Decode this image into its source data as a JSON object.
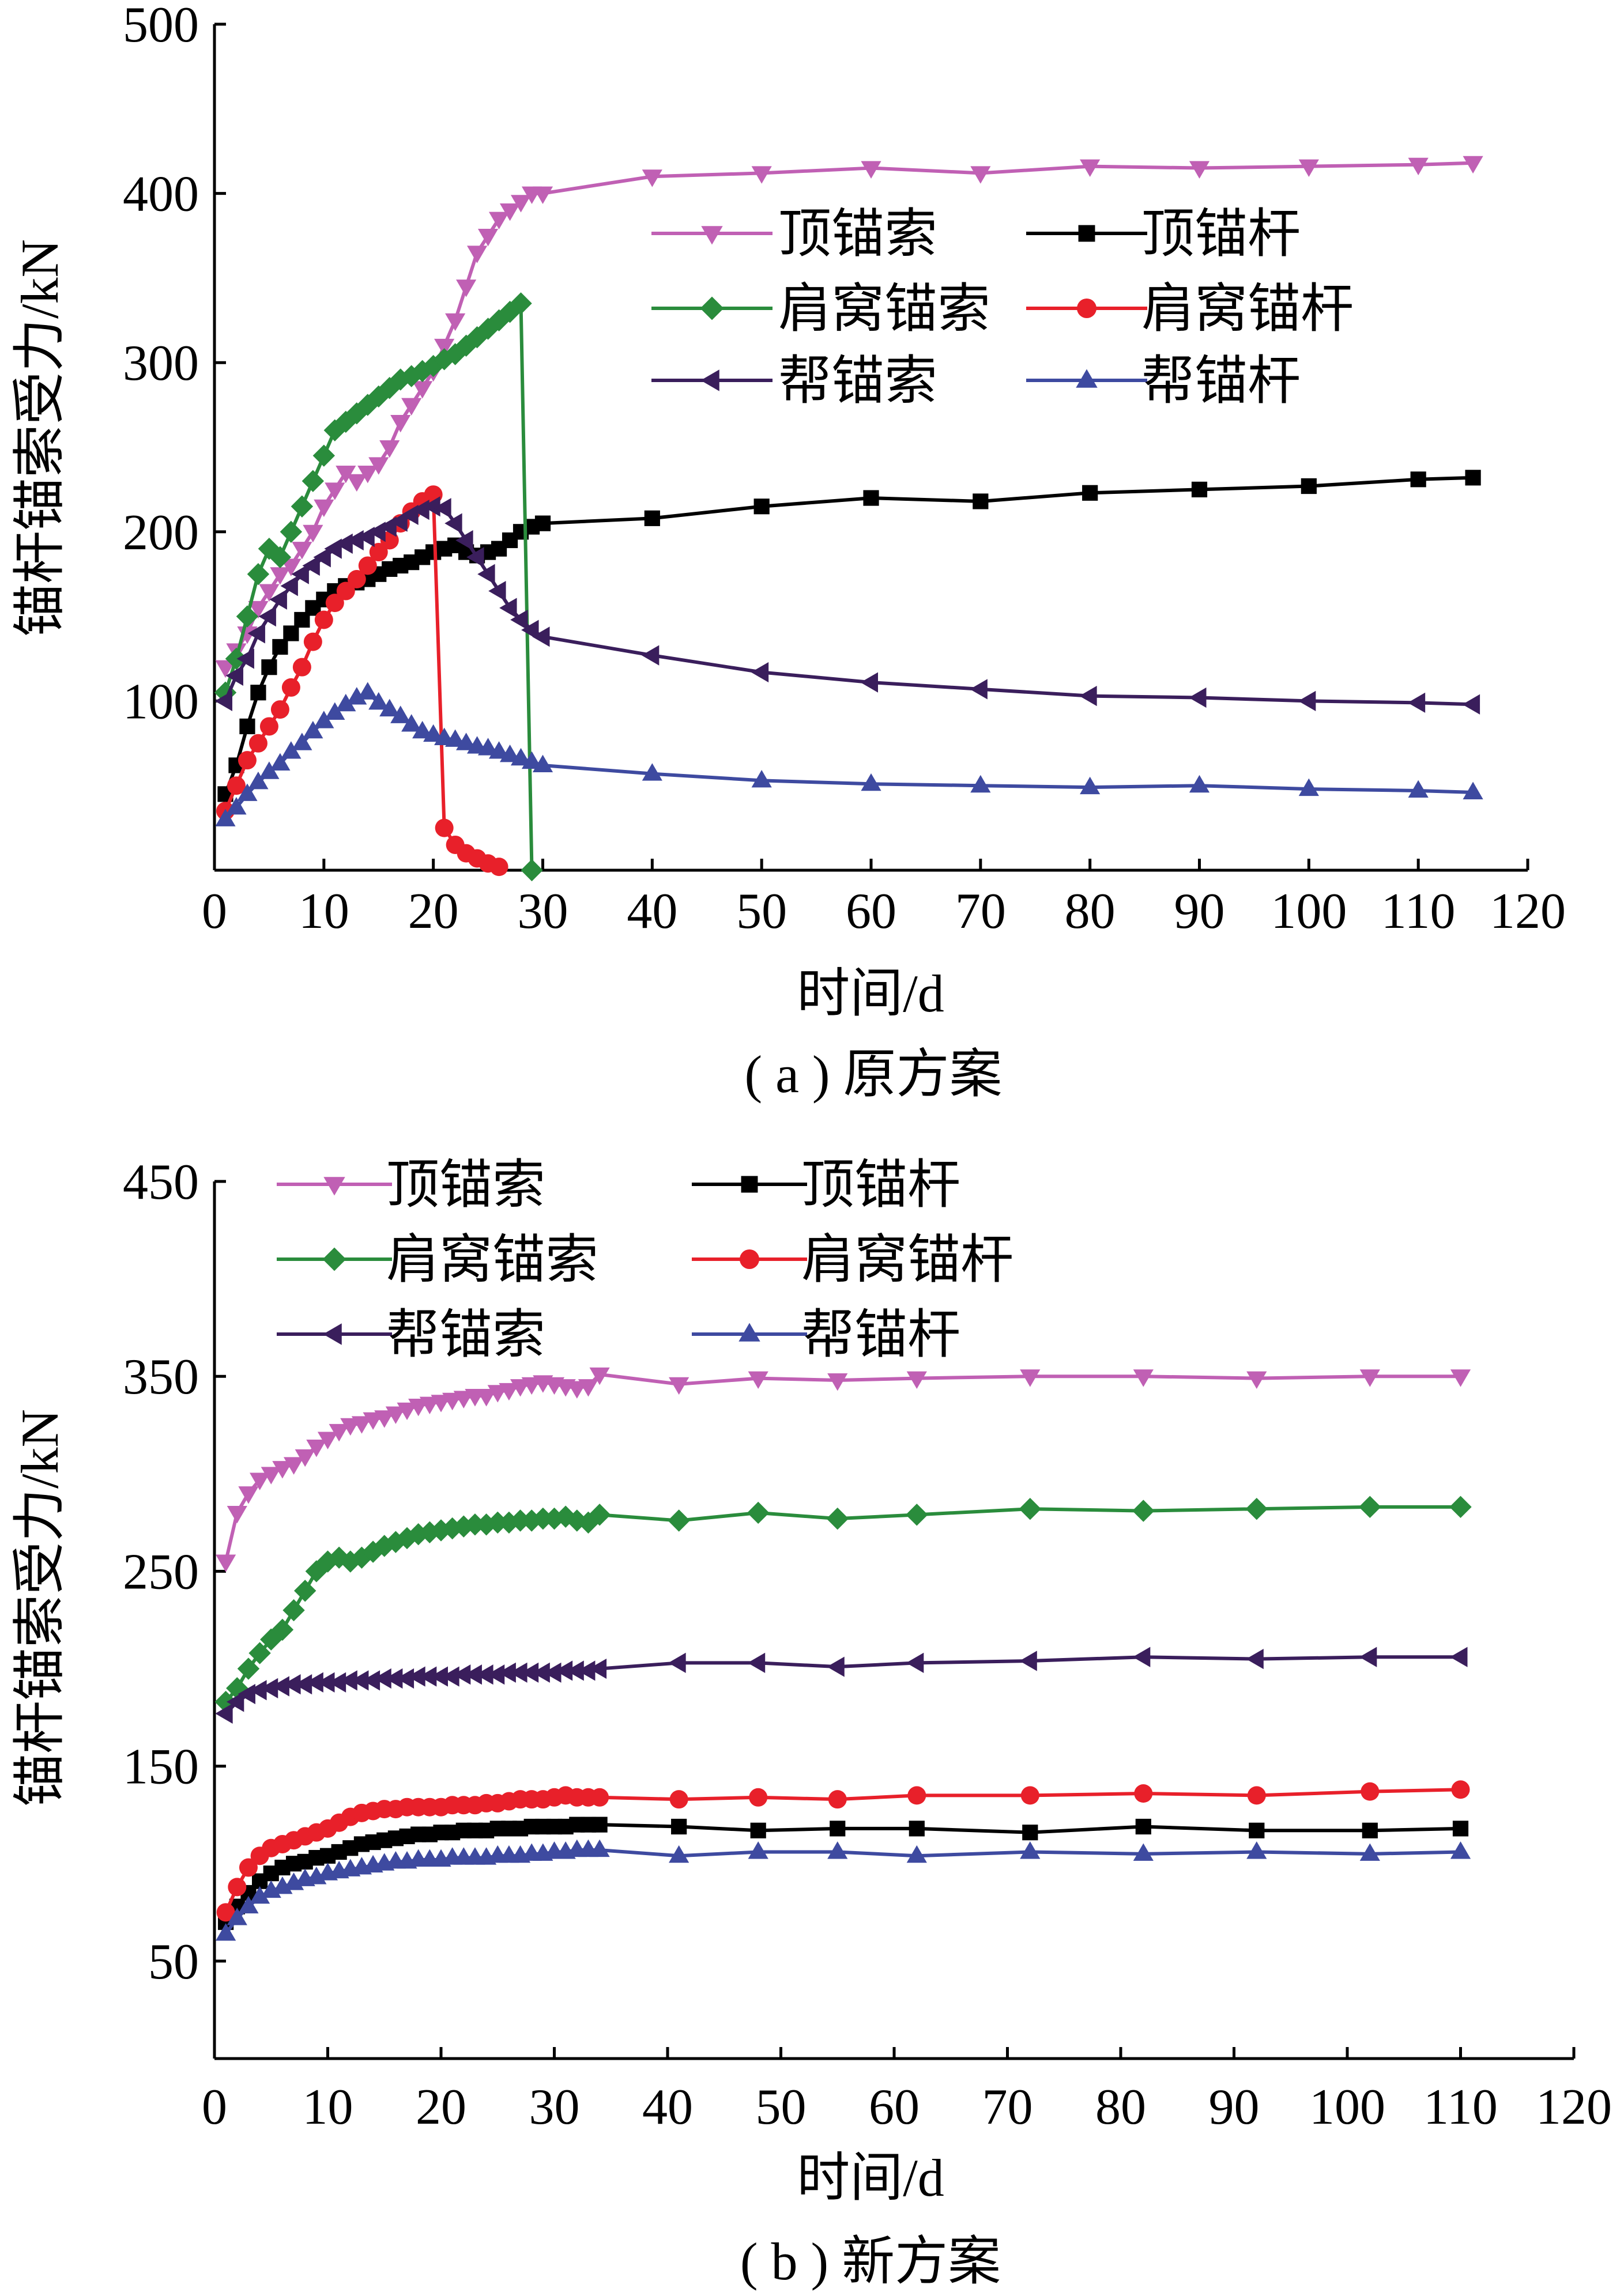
{
  "chart_data": [
    {
      "type": "line",
      "caption": "( a ) 原方案",
      "xlabel": "时间/d",
      "ylabel": "锚杆锚索受力/kN",
      "xlim": [
        0,
        120
      ],
      "ylim": [
        0,
        500
      ],
      "xticks": [
        0,
        10,
        20,
        30,
        40,
        50,
        60,
        70,
        80,
        90,
        100,
        110,
        120
      ],
      "yticks": [
        100,
        200,
        300,
        400,
        500
      ],
      "legend_placement": "top-right",
      "grid": false,
      "series": [
        {
          "name": "顶锚索",
          "color": "#C060B4",
          "marker": "triangle-down",
          "x": [
            1,
            2,
            3,
            4,
            5,
            6,
            7,
            8,
            9,
            10,
            11,
            12,
            13,
            14,
            15,
            16,
            17,
            18,
            19,
            20,
            21,
            22,
            23,
            24,
            25,
            26,
            27,
            28,
            29,
            30,
            40,
            50,
            60,
            70,
            80,
            90,
            100,
            110,
            115
          ],
          "y": [
            120,
            130,
            140,
            155,
            165,
            175,
            180,
            190,
            200,
            215,
            225,
            235,
            230,
            235,
            240,
            250,
            265,
            275,
            285,
            295,
            310,
            325,
            345,
            365,
            375,
            385,
            390,
            395,
            400,
            400,
            410,
            412,
            415,
            412,
            416,
            415,
            416,
            417,
            418
          ]
        },
        {
          "name": "顶锚杆",
          "color": "#000000",
          "marker": "square",
          "x": [
            1,
            2,
            3,
            4,
            5,
            6,
            7,
            8,
            9,
            10,
            11,
            12,
            13,
            14,
            15,
            16,
            17,
            18,
            19,
            20,
            21,
            22,
            23,
            24,
            25,
            26,
            27,
            28,
            29,
            30,
            40,
            50,
            60,
            70,
            80,
            90,
            100,
            110,
            115
          ],
          "y": [
            45,
            62,
            85,
            105,
            120,
            132,
            140,
            148,
            155,
            160,
            165,
            168,
            170,
            172,
            175,
            178,
            180,
            182,
            185,
            188,
            190,
            192,
            188,
            186,
            188,
            190,
            195,
            200,
            203,
            205,
            208,
            215,
            220,
            218,
            223,
            225,
            227,
            231,
            232
          ]
        },
        {
          "name": "肩窝锚索",
          "color": "#2A8C3C",
          "marker": "diamond",
          "x": [
            1,
            2,
            3,
            4,
            5,
            6,
            7,
            8,
            9,
            10,
            11,
            12,
            13,
            14,
            15,
            16,
            17,
            18,
            19,
            20,
            21,
            22,
            23,
            24,
            25,
            26,
            27,
            28,
            29
          ],
          "y": [
            105,
            125,
            150,
            175,
            190,
            185,
            200,
            215,
            230,
            245,
            260,
            265,
            270,
            275,
            280,
            285,
            290,
            292,
            295,
            298,
            302,
            305,
            310,
            315,
            320,
            325,
            330,
            335,
            0
          ]
        },
        {
          "name": "肩窝锚杆",
          "color": "#E8202A",
          "marker": "circle",
          "x": [
            1,
            2,
            3,
            4,
            5,
            6,
            7,
            8,
            9,
            10,
            11,
            12,
            13,
            14,
            15,
            16,
            17,
            18,
            19,
            20,
            21,
            22,
            23,
            24,
            25,
            26
          ],
          "y": [
            35,
            50,
            65,
            75,
            85,
            95,
            108,
            120,
            135,
            148,
            158,
            165,
            172,
            180,
            188,
            195,
            205,
            212,
            218,
            222,
            25,
            15,
            10,
            7,
            4,
            2
          ]
        },
        {
          "name": "帮锚索",
          "color": "#3A1E5C",
          "marker": "triangle-left",
          "x": [
            1,
            2,
            3,
            4,
            5,
            6,
            7,
            8,
            9,
            10,
            11,
            12,
            13,
            14,
            15,
            16,
            17,
            18,
            19,
            20,
            21,
            22,
            23,
            24,
            25,
            26,
            27,
            28,
            29,
            30,
            40,
            50,
            60,
            70,
            80,
            90,
            100,
            110,
            115
          ],
          "y": [
            100,
            115,
            125,
            140,
            150,
            160,
            168,
            175,
            180,
            185,
            190,
            193,
            195,
            197,
            200,
            203,
            206,
            210,
            213,
            215,
            214,
            205,
            195,
            185,
            175,
            165,
            155,
            148,
            142,
            138,
            127,
            117,
            111,
            107,
            103,
            102,
            100,
            99,
            98
          ]
        },
        {
          "name": "帮锚杆",
          "color": "#3E4AA0",
          "marker": "triangle-up",
          "x": [
            1,
            2,
            3,
            4,
            5,
            6,
            7,
            8,
            9,
            10,
            11,
            12,
            13,
            14,
            15,
            16,
            17,
            18,
            19,
            20,
            21,
            22,
            23,
            24,
            25,
            26,
            27,
            28,
            29,
            30,
            40,
            50,
            60,
            70,
            80,
            90,
            100,
            110,
            115
          ],
          "y": [
            30,
            37,
            45,
            52,
            58,
            63,
            70,
            75,
            82,
            88,
            93,
            98,
            102,
            105,
            99,
            95,
            91,
            86,
            82,
            80,
            78,
            77,
            75,
            73,
            72,
            70,
            68,
            66,
            64,
            62,
            57,
            53,
            51,
            50,
            49,
            50,
            48,
            47,
            46
          ]
        }
      ]
    },
    {
      "type": "line",
      "caption": "( b ) 新方案",
      "xlabel": "时间/d",
      "ylabel": "锚杆锚索受力/kN",
      "xlim": [
        0,
        120
      ],
      "ylim": [
        0,
        450
      ],
      "xticks": [
        0,
        10,
        20,
        30,
        40,
        50,
        60,
        70,
        80,
        90,
        100,
        110,
        120
      ],
      "yticks": [
        50,
        150,
        250,
        350,
        450
      ],
      "legend_placement": "top",
      "grid": false,
      "series": [
        {
          "name": "顶锚索",
          "color": "#C060B4",
          "marker": "triangle-down",
          "x": [
            1,
            2,
            3,
            4,
            5,
            6,
            7,
            8,
            9,
            10,
            11,
            12,
            13,
            14,
            15,
            16,
            17,
            18,
            19,
            20,
            21,
            22,
            23,
            24,
            25,
            26,
            27,
            28,
            29,
            30,
            31,
            32,
            33,
            34,
            41,
            48,
            55,
            62,
            72,
            82,
            92,
            102,
            110
          ],
          "y": [
            255,
            280,
            290,
            297,
            300,
            303,
            305,
            309,
            314,
            318,
            322,
            325,
            326,
            328,
            329,
            331,
            333,
            335,
            336,
            337,
            338,
            339,
            340,
            340,
            342,
            343,
            345,
            346,
            347,
            346,
            345,
            344,
            345,
            351,
            346,
            349,
            348,
            349,
            350,
            350,
            349,
            350,
            350
          ]
        },
        {
          "name": "顶锚杆",
          "color": "#000000",
          "marker": "square",
          "x": [
            1,
            2,
            3,
            4,
            5,
            6,
            7,
            8,
            9,
            10,
            11,
            12,
            13,
            14,
            15,
            16,
            17,
            18,
            19,
            20,
            21,
            22,
            23,
            24,
            25,
            26,
            27,
            28,
            29,
            30,
            31,
            32,
            33,
            34,
            41,
            48,
            55,
            62,
            72,
            82,
            92,
            102,
            110
          ],
          "y": [
            70,
            78,
            85,
            91,
            95,
            98,
            100,
            101,
            103,
            104,
            106,
            108,
            110,
            111,
            112,
            113,
            114,
            115,
            115,
            116,
            116,
            117,
            117,
            117,
            118,
            118,
            118,
            119,
            119,
            119,
            119,
            120,
            120,
            120,
            119,
            117,
            118,
            118,
            116,
            119,
            117,
            117,
            118
          ]
        },
        {
          "name": "肩窝锚索",
          "color": "#2A8C3C",
          "marker": "diamond",
          "x": [
            1,
            2,
            3,
            4,
            5,
            6,
            7,
            8,
            9,
            10,
            11,
            12,
            13,
            14,
            15,
            16,
            17,
            18,
            19,
            20,
            21,
            22,
            23,
            24,
            25,
            26,
            27,
            28,
            29,
            30,
            31,
            32,
            33,
            34,
            41,
            48,
            55,
            62,
            72,
            82,
            92,
            102,
            110
          ],
          "y": [
            183,
            190,
            200,
            208,
            215,
            220,
            230,
            240,
            250,
            255,
            257,
            255,
            257,
            260,
            263,
            265,
            267,
            269,
            270,
            271,
            272,
            273,
            274,
            274,
            275,
            275,
            276,
            276,
            277,
            277,
            278,
            276,
            275,
            279,
            276,
            280,
            277,
            279,
            282,
            281,
            282,
            283,
            283
          ]
        },
        {
          "name": "肩窝锚杆",
          "color": "#E8202A",
          "marker": "circle",
          "x": [
            1,
            2,
            3,
            4,
            5,
            6,
            7,
            8,
            9,
            10,
            11,
            12,
            13,
            14,
            15,
            16,
            17,
            18,
            19,
            20,
            21,
            22,
            23,
            24,
            25,
            26,
            27,
            28,
            29,
            30,
            31,
            32,
            33,
            34,
            41,
            48,
            55,
            62,
            72,
            82,
            92,
            102,
            110
          ],
          "y": [
            75,
            88,
            98,
            104,
            108,
            110,
            112,
            114,
            116,
            118,
            121,
            124,
            126,
            127,
            128,
            128,
            129,
            129,
            129,
            129,
            130,
            130,
            130,
            131,
            131,
            132,
            133,
            133,
            133,
            134,
            135,
            134,
            134,
            134,
            133,
            134,
            133,
            135,
            135,
            136,
            135,
            137,
            138
          ]
        },
        {
          "name": "帮锚索",
          "color": "#3A1E5C",
          "marker": "triangle-left",
          "x": [
            1,
            2,
            3,
            4,
            5,
            6,
            7,
            8,
            9,
            10,
            11,
            12,
            13,
            14,
            15,
            16,
            17,
            18,
            19,
            20,
            21,
            22,
            23,
            24,
            25,
            26,
            27,
            28,
            29,
            30,
            31,
            32,
            33,
            34,
            41,
            48,
            55,
            62,
            72,
            82,
            92,
            102,
            110
          ],
          "y": [
            177,
            183,
            187,
            189,
            190,
            191,
            192,
            192,
            193,
            193,
            193,
            194,
            194,
            194,
            195,
            195,
            195,
            196,
            196,
            196,
            196,
            197,
            197,
            197,
            197,
            198,
            198,
            198,
            198,
            198,
            199,
            199,
            199,
            200,
            203,
            203,
            201,
            203,
            204,
            206,
            205,
            206,
            206
          ]
        },
        {
          "name": "帮锚杆",
          "color": "#3E4AA0",
          "marker": "triangle-up",
          "x": [
            1,
            2,
            3,
            4,
            5,
            6,
            7,
            8,
            9,
            10,
            11,
            12,
            13,
            14,
            15,
            16,
            17,
            18,
            19,
            20,
            21,
            22,
            23,
            24,
            25,
            26,
            27,
            28,
            29,
            30,
            31,
            32,
            33,
            34,
            41,
            48,
            55,
            62,
            72,
            82,
            92,
            102,
            110
          ],
          "y": [
            64,
            72,
            78,
            83,
            86,
            88,
            90,
            92,
            93,
            95,
            96,
            97,
            98,
            99,
            100,
            101,
            101,
            102,
            102,
            102,
            103,
            103,
            103,
            103,
            104,
            104,
            104,
            105,
            105,
            106,
            106,
            107,
            107,
            107,
            104,
            106,
            106,
            104,
            106,
            105,
            106,
            105,
            106
          ]
        }
      ]
    }
  ]
}
